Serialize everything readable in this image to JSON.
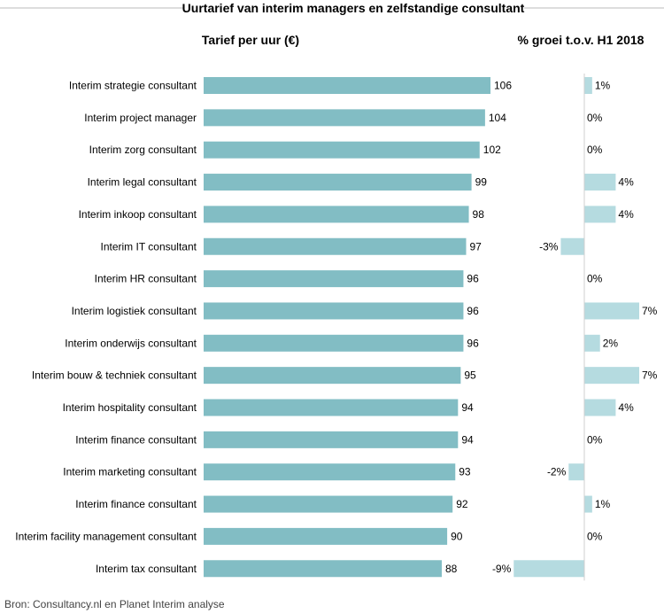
{
  "chart_data": {
    "type": "bar",
    "orientation": "horizontal",
    "title": "Uurtarief van interim managers en zelfstandige consultant",
    "categories": [
      "Interim strategie consultant",
      "Interim project manager",
      "Interim zorg consultant",
      "Interim legal consultant",
      "Interim inkoop consultant",
      "Interim IT consultant",
      "Interim HR consultant",
      "Interim logistiek consultant",
      "Interim onderwijs consultant",
      "Interim bouw & techniek consultant",
      "Interim hospitality consultant",
      "Interim finance consultant",
      "Interim marketing consultant",
      "Interim finance consultant",
      "Interim facility management consultant",
      "Interim tax consultant"
    ],
    "series": [
      {
        "name": "Tarief per uur (€)",
        "values": [
          106,
          104,
          102,
          99,
          98,
          97,
          96,
          96,
          96,
          95,
          94,
          94,
          93,
          92,
          90,
          88
        ],
        "labels": [
          "106",
          "104",
          "102",
          "99",
          "98",
          "97",
          "96",
          "96",
          "96",
          "95",
          "94",
          "94",
          "93",
          "92",
          "90",
          "88"
        ],
        "color": "#82bdc4"
      },
      {
        "name": "% groei t.o.v. H1 2018",
        "values": [
          1,
          0,
          0,
          4,
          4,
          -3,
          0,
          7,
          2,
          7,
          4,
          0,
          -2,
          1,
          0,
          -9
        ],
        "labels": [
          "1%",
          "0%",
          "0%",
          "4%",
          "4%",
          "-3%",
          "0%",
          "7%",
          "2%",
          "7%",
          "4%",
          "0%",
          "-2%",
          "1%",
          "0%",
          "-9%"
        ],
        "color": "#b5dbe0"
      }
    ],
    "source": "Bron:  Consultancy.nl en Planet Interim analyse",
    "title_line_color": "#bbbbbb",
    "grid": false,
    "legend": "none"
  }
}
